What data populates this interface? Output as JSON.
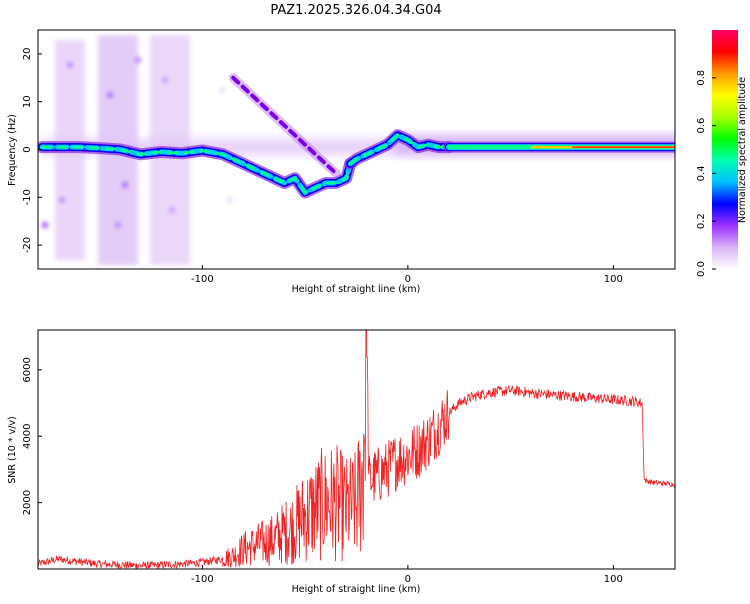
{
  "title": "PAZ1.2025.326.04.34.G04",
  "chart_data": [
    {
      "type": "heatmap",
      "id": "spectrogram",
      "xlabel": "Height of straight line (km)",
      "ylabel": "Frequency (Hz)",
      "xlim": [
        -180,
        130
      ],
      "ylim": [
        -25,
        25
      ],
      "xticks": [
        -100,
        0,
        100
      ],
      "yticks": [
        -20,
        -10,
        0,
        10,
        20
      ],
      "colorbar": {
        "label": "Normalized spectral amplitude",
        "range": [
          0.0,
          1.0
        ],
        "ticks": [
          0.0,
          0.2,
          0.4,
          0.6,
          0.8
        ],
        "tick_labels": [
          "0.0",
          "0.2",
          "0.4",
          "0.6",
          "0.8"
        ],
        "stops": [
          "#ffffff",
          "#d9b3f5",
          "#9b30ff",
          "#0000ff",
          "#00bfff",
          "#00ffb0",
          "#00ff00",
          "#aaff00",
          "#ffff00",
          "#ff9900",
          "#ff0000",
          "#ff0066"
        ]
      },
      "ridges": [
        {
          "name": "main-ridge",
          "x": [
            -178,
            -170,
            -160,
            -150,
            -140,
            -130,
            -120,
            -110,
            -100,
            -90,
            -80,
            -70,
            -60,
            -55,
            -50,
            -45,
            -40,
            -35,
            -30,
            -28
          ],
          "y": [
            0.5,
            0.5,
            0.5,
            0.3,
            0,
            -1,
            -0.5,
            -0.8,
            -0.2,
            -1,
            -3,
            -5,
            -7,
            -6,
            -9,
            -8,
            -7,
            -7,
            -6,
            -3
          ]
        },
        {
          "name": "upper-ridge",
          "x": [
            -85,
            -80,
            -75,
            -70,
            -65,
            -60,
            -55,
            -50,
            -45,
            -40,
            -35
          ],
          "y": [
            15,
            13,
            11,
            9,
            7,
            5,
            3,
            1,
            -1,
            -3,
            -5
          ]
        },
        {
          "name": "post-ridge",
          "x": [
            -28,
            -25,
            -20,
            -15,
            -10,
            -5,
            0,
            5,
            10,
            15,
            20
          ],
          "y": [
            -3,
            -2,
            -1,
            0,
            1,
            3,
            2,
            0.5,
            1,
            0.5,
            0.5
          ]
        },
        {
          "name": "tail-ridge",
          "x": [
            20,
            40,
            60,
            80,
            100,
            120,
            130
          ],
          "y": [
            0.5,
            0.5,
            0.5,
            0.5,
            0.5,
            0.5,
            0.5
          ]
        }
      ]
    },
    {
      "type": "line",
      "id": "snr",
      "xlabel": "Height of straight line (km)",
      "ylabel": "SNR (10 * v/v)",
      "xlim": [
        -180,
        130
      ],
      "ylim": [
        0,
        7200
      ],
      "xticks": [
        -100,
        0,
        100
      ],
      "yticks": [
        2000,
        4000,
        6000
      ],
      "color": "#ee2222",
      "series": [
        {
          "name": "SNR",
          "x": [
            -180,
            -170,
            -160,
            -150,
            -140,
            -130,
            -120,
            -110,
            -100,
            -90,
            -85,
            -80,
            -75,
            -70,
            -65,
            -60,
            -55,
            -50,
            -45,
            -40,
            -35,
            -30,
            -25,
            -22,
            -20,
            -19,
            -18,
            -15,
            -10,
            -5,
            0,
            5,
            10,
            15,
            20,
            25,
            30,
            35,
            40,
            45,
            50,
            55,
            60,
            70,
            80,
            90,
            100,
            110,
            114,
            115,
            116,
            120,
            130
          ],
          "y": [
            150,
            300,
            220,
            150,
            130,
            100,
            120,
            150,
            200,
            300,
            400,
            600,
            700,
            800,
            900,
            1100,
            1300,
            1600,
            1800,
            2000,
            2000,
            1800,
            1900,
            2800,
            7200,
            2600,
            2700,
            2800,
            3000,
            3300,
            3400,
            3600,
            3900,
            4300,
            4700,
            5000,
            5150,
            5250,
            5320,
            5350,
            5380,
            5350,
            5300,
            5250,
            5200,
            5150,
            5100,
            5050,
            5000,
            2700,
            2650,
            2600,
            2550
          ]
        }
      ]
    }
  ]
}
